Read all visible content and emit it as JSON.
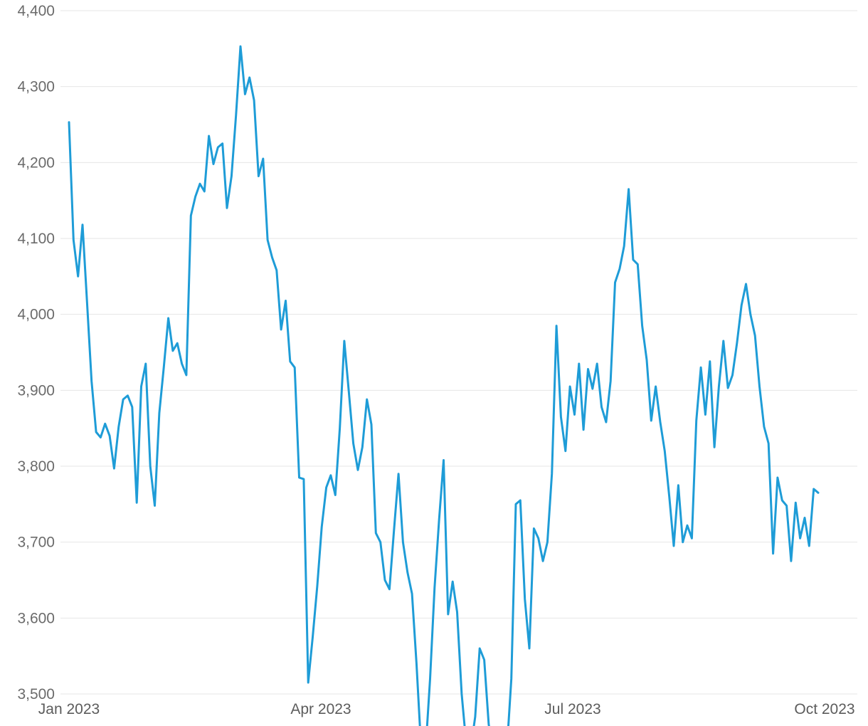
{
  "chart_data": {
    "type": "line",
    "title": "",
    "xlabel": "",
    "ylabel": "",
    "grid": true,
    "legend": false,
    "line_color": "#1e9cd7",
    "grid_color": "#e6e6e6",
    "y_label_color": "#6b6b6b",
    "x_label_color": "#5c5c5c",
    "background_color": "#ffffff",
    "ylim": [
      3500,
      4400
    ],
    "y_ticks": [
      {
        "value": 4400,
        "label": "4,400"
      },
      {
        "value": 4300,
        "label": "4,300"
      },
      {
        "value": 4200,
        "label": "4,200"
      },
      {
        "value": 4100,
        "label": "4,100"
      },
      {
        "value": 4000,
        "label": "4,000"
      },
      {
        "value": 3900,
        "label": "3,900"
      },
      {
        "value": 3800,
        "label": "3,800"
      },
      {
        "value": 3700,
        "label": "3,700"
      },
      {
        "value": 3600,
        "label": "3,600"
      },
      {
        "value": 3500,
        "label": "3,500"
      }
    ],
    "x_tick_labels": [
      "Jan 2023",
      "Apr 2023",
      "Jul 2023",
      "Oct 2023"
    ],
    "values": [
      4253,
      4098,
      4050,
      4118,
      4015,
      3912,
      3845,
      3838,
      3856,
      3840,
      3797,
      3852,
      3888,
      3893,
      3878,
      3752,
      3905,
      3935,
      3800,
      3748,
      3870,
      3930,
      3995,
      3952,
      3962,
      3935,
      3920,
      4130,
      4155,
      4172,
      4162,
      4235,
      4198,
      4220,
      4225,
      4140,
      4182,
      4262,
      4353,
      4290,
      4312,
      4282,
      4182,
      4205,
      4098,
      4075,
      4058,
      3980,
      4018,
      3938,
      3930,
      3785,
      3783,
      3515,
      3575,
      3642,
      3720,
      3772,
      3788,
      3762,
      3850,
      3965,
      3898,
      3830,
      3795,
      3825,
      3888,
      3855,
      3712,
      3700,
      3650,
      3638,
      3715,
      3790,
      3700,
      3660,
      3632,
      3540,
      3430,
      3425,
      3520,
      3640,
      3730,
      3808,
      3605,
      3648,
      3608,
      3500,
      3435,
      3428,
      3470,
      3560,
      3545,
      3460,
      3425,
      3418,
      3430,
      3425,
      3520,
      3750,
      3755,
      3625,
      3560,
      3718,
      3705,
      3675,
      3700,
      3790,
      3985,
      3865,
      3820,
      3905,
      3868,
      3935,
      3848,
      3928,
      3902,
      3935,
      3878,
      3858,
      3912,
      4042,
      4060,
      4090,
      4165,
      4072,
      4066,
      3985,
      3940,
      3860,
      3905,
      3858,
      3820,
      3760,
      3695,
      3775,
      3700,
      3722,
      3705,
      3860,
      3930,
      3868,
      3938,
      3825,
      3905,
      3965,
      3903,
      3920,
      3962,
      4012,
      4040,
      4000,
      3972,
      3905,
      3852,
      3830,
      3685,
      3785,
      3755,
      3748,
      3675,
      3752,
      3705,
      3732,
      3695,
      3770,
      3765
    ]
  }
}
